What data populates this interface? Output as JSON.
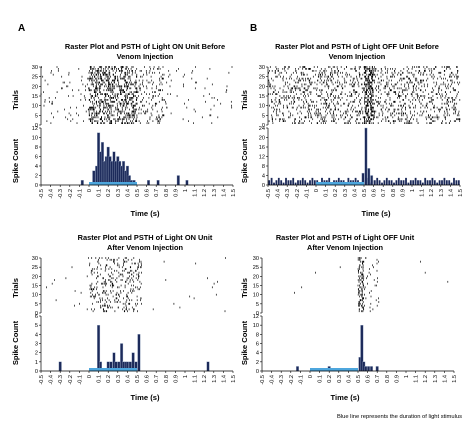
{
  "panel_letters": [
    "A",
    "B"
  ],
  "note": "Blue line represents the duration of light stimulus",
  "colors": {
    "stimulus": "#4da6dd",
    "bar_fill": "#1c2a5a",
    "bar_hi": "#9aaac4",
    "axis": "#000000"
  },
  "chart_data": [
    {
      "type": "bar",
      "title_lines": [
        "Raster Plot and PSTH of Light ON Unit Before",
        "Venom Injection"
      ],
      "raster_ylabel": "Trials",
      "psth_ylabel": "Spike Count",
      "xlabel": "Time (s)",
      "x_ticks": [
        "-0.5",
        "-0.4",
        "-0.3",
        "-0.2",
        "-0.1",
        "0",
        "0.1",
        "0.2",
        "0.3",
        "0.4",
        "0.5",
        "0.6",
        "0.7",
        "0.8",
        "0.9",
        "1",
        "1.1",
        "1.2",
        "1.3",
        "1.4",
        "1.5"
      ],
      "xlim": [
        -0.5,
        1.5
      ],
      "raster_ylim": [
        0,
        30
      ],
      "raster_y_ticks": [
        "0",
        "5",
        "10",
        "15",
        "20",
        "25",
        "30"
      ],
      "psth_ylim": [
        0,
        12
      ],
      "psth_y_ticks": [
        "0",
        "2",
        "4",
        "6",
        "8",
        "10",
        "12"
      ],
      "stimulus": [
        0,
        0.5
      ],
      "bin_centers": [
        -0.07,
        0.05,
        0.08,
        0.1,
        0.12,
        0.14,
        0.16,
        0.18,
        0.2,
        0.22,
        0.24,
        0.26,
        0.28,
        0.3,
        0.32,
        0.34,
        0.36,
        0.38,
        0.4,
        0.42,
        0.44,
        0.47,
        0.62,
        0.72,
        0.93,
        1.02
      ],
      "counts": [
        1,
        3,
        4,
        11,
        7,
        9,
        5,
        6,
        8,
        6,
        5,
        7,
        5,
        6,
        5,
        4,
        5,
        3,
        4,
        2,
        1,
        1,
        1,
        1,
        2,
        1
      ],
      "raster_density": [
        [
          -0.5,
          0.0,
          0.8
        ],
        [
          0.0,
          0.5,
          9
        ],
        [
          0.5,
          0.85,
          2.5
        ],
        [
          0.85,
          1.5,
          0.4
        ]
      ],
      "raster_rows": [
        1,
        30
      ]
    },
    {
      "type": "bar",
      "title_lines": [
        "Raster Plot and PSTH of Light OFF Unit Before",
        "Venom Injection"
      ],
      "raster_ylabel": "Trials",
      "psth_ylabel": "Spike Count",
      "xlabel": "Time (s)",
      "x_ticks": [
        "-0.5",
        "-0.4",
        "-0.3",
        "-0.2",
        "-0.1",
        "0",
        "0.1",
        "0.2",
        "0.3",
        "0.4",
        "0.5",
        "0.6",
        "0.7",
        "0.8",
        "0.9",
        "1",
        "1.1",
        "1.2",
        "1.3",
        "1.4",
        "1.5"
      ],
      "xlim": [
        -0.5,
        1.5
      ],
      "raster_ylim": [
        0,
        30
      ],
      "raster_y_ticks": [
        "0",
        "5",
        "10",
        "15",
        "20",
        "25",
        "30"
      ],
      "psth_ylim": [
        0,
        24
      ],
      "psth_y_ticks": [
        "0",
        "4",
        "8",
        "12",
        "16",
        "20",
        "24"
      ],
      "stimulus": [
        0,
        0.5
      ],
      "baseline_counts": [
        2,
        3,
        1,
        2,
        3,
        2,
        1,
        3,
        2,
        2,
        3,
        1,
        2,
        2,
        3,
        2,
        1,
        2,
        3,
        2,
        2,
        1,
        3,
        2,
        2,
        3,
        1,
        2,
        2,
        3,
        2,
        2,
        1,
        3,
        2,
        2,
        3,
        2,
        1,
        2,
        2,
        3,
        1,
        2,
        2,
        3,
        2,
        1,
        2,
        3,
        2,
        2,
        1,
        2,
        3,
        2,
        2,
        3,
        1,
        2,
        2,
        3,
        2,
        2,
        1,
        3,
        2,
        2,
        3,
        2,
        1,
        2,
        2,
        3,
        2,
        2,
        1,
        3,
        2,
        2
      ],
      "peaks": [
        [
          0.52,
          24
        ],
        [
          0.55,
          7
        ],
        [
          0.49,
          5
        ],
        [
          0.58,
          4
        ]
      ],
      "raster_density": [
        [
          -0.5,
          0.5,
          4
        ],
        [
          0.5,
          0.6,
          16
        ],
        [
          0.6,
          1.5,
          4
        ]
      ],
      "raster_rows": [
        1,
        30
      ]
    },
    {
      "type": "bar",
      "title_lines": [
        "Raster Plot and PSTH of Light ON Unit",
        "After Venom Injection"
      ],
      "raster_ylabel": "Trials",
      "psth_ylabel": "Spike Count",
      "xlabel": "Time (s)",
      "x_ticks": [
        "-0.5",
        "-0.4",
        "-0.3",
        "-0.2",
        "-0.1",
        "0",
        "0.1",
        "0.2",
        "0.3",
        "0.4",
        "0.5",
        "0.6",
        "0.7",
        "0.8",
        "0.9",
        "1",
        "1.1",
        "1.2",
        "1.3",
        "1.4",
        "1.5"
      ],
      "xlim": [
        -0.5,
        1.5
      ],
      "raster_ylim": [
        0,
        30
      ],
      "raster_y_ticks": [
        "0",
        "5",
        "10",
        "15",
        "20",
        "25",
        "30"
      ],
      "psth_ylim": [
        0,
        6
      ],
      "psth_y_ticks": [
        "0",
        "1",
        "2",
        "3",
        "4",
        "5",
        "6"
      ],
      "stimulus": [
        0,
        0.5
      ],
      "bin_centers": [
        -0.3,
        0.1,
        0.12,
        0.2,
        0.23,
        0.26,
        0.28,
        0.31,
        0.34,
        0.36,
        0.38,
        0.4,
        0.43,
        0.46,
        0.49,
        0.52,
        1.24
      ],
      "counts": [
        1,
        5,
        1,
        1,
        1,
        2,
        1,
        1,
        3,
        1,
        1,
        1,
        1,
        2,
        1,
        4,
        1
      ],
      "raster_density": [
        [
          -0.5,
          0.0,
          0.15
        ],
        [
          0.0,
          0.55,
          3.2
        ],
        [
          0.55,
          1.5,
          0.1
        ]
      ],
      "raster_rows": [
        1,
        30
      ]
    },
    {
      "type": "bar",
      "title_lines": [
        "Raster Plot and PSTH of Light OFF Unit",
        "After Venom Injection"
      ],
      "raster_ylabel": "Trials",
      "psth_ylabel": "Spike Count",
      "xlabel": "Time (s)",
      "x_ticks": [
        "-0.5",
        "-0.4",
        "-0.3",
        "-0.2",
        "-0.1",
        "0",
        "0.1",
        "0.2",
        "0.3",
        "0.4",
        "0.5",
        "0.6",
        "0.7",
        "0.8",
        "0.9",
        "1",
        "1.1",
        "1.2",
        "1.3",
        "1.4",
        "1.5"
      ],
      "xlim": [
        -0.5,
        1.5
      ],
      "raster_ylim": [
        0,
        30
      ],
      "raster_y_ticks": [
        "0",
        "5",
        "10",
        "15",
        "20",
        "25",
        "30"
      ],
      "psth_ylim": [
        0,
        12
      ],
      "psth_y_ticks": [
        "0",
        "2",
        "4",
        "6",
        "8",
        "10",
        "12"
      ],
      "stimulus": [
        0,
        0.5
      ],
      "bin_centers": [
        -0.13,
        0.2,
        0.52,
        0.54,
        0.56,
        0.58,
        0.61,
        0.64,
        0.7
      ],
      "counts": [
        1,
        1,
        3,
        10,
        2,
        1,
        1,
        1,
        1
      ],
      "raster_density": [
        [
          -0.5,
          0.5,
          0.05
        ],
        [
          0.5,
          0.56,
          10
        ],
        [
          0.56,
          0.72,
          1.2
        ],
        [
          0.72,
          1.5,
          0.02
        ]
      ],
      "raster_rows": [
        1,
        30
      ]
    }
  ]
}
